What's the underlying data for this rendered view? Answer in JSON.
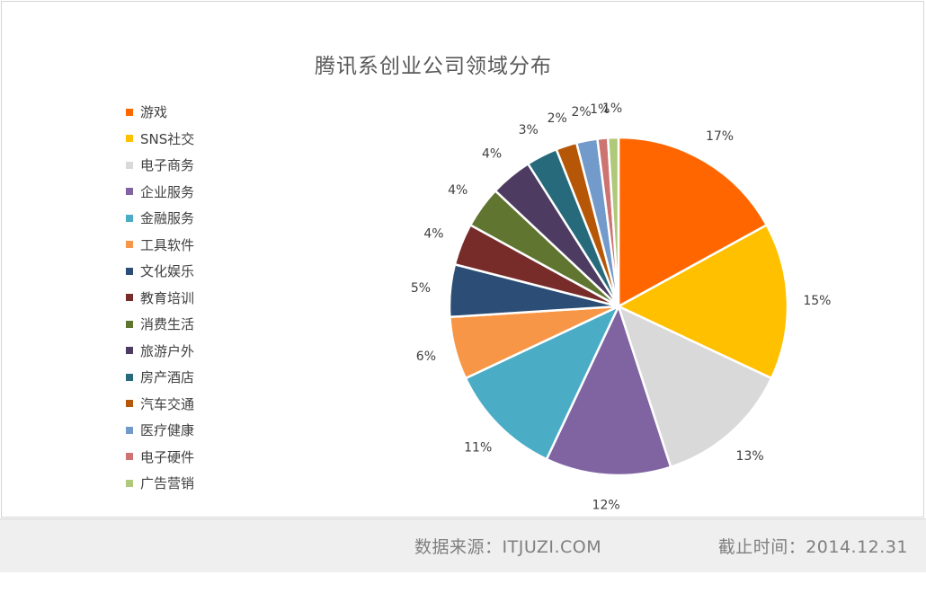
{
  "chart_data": {
    "type": "pie",
    "title": "腾讯系创业公司领域分布",
    "legend_position": "left",
    "slices": [
      {
        "label": "游戏",
        "value": 17,
        "display": "17%",
        "color": "#FF6600"
      },
      {
        "label": "SNS社交",
        "value": 15,
        "display": "15%",
        "color": "#FFC000"
      },
      {
        "label": "电子商务",
        "value": 13,
        "display": "13%",
        "color": "#D9D9D9"
      },
      {
        "label": "企业服务",
        "value": 12,
        "display": "12%",
        "color": "#8064A2"
      },
      {
        "label": "金融服务",
        "value": 11,
        "display": "11%",
        "color": "#4BACC6"
      },
      {
        "label": "工具软件",
        "value": 6,
        "display": "6%",
        "color": "#F79646"
      },
      {
        "label": "文化娱乐",
        "value": 5,
        "display": "5%",
        "color": "#2C4D75"
      },
      {
        "label": "教育培训",
        "value": 4,
        "display": "4%",
        "color": "#772C2A"
      },
      {
        "label": "消费生活",
        "value": 4,
        "display": "4%",
        "color": "#5F7530"
      },
      {
        "label": "旅游户外",
        "value": 4,
        "display": "4%",
        "color": "#4D3B62"
      },
      {
        "label": "房产酒店",
        "value": 3,
        "display": "3%",
        "color": "#276A7C"
      },
      {
        "label": "汽车交通",
        "value": 2,
        "display": "2%",
        "color": "#B65708"
      },
      {
        "label": "医疗健康",
        "value": 2,
        "display": "2%",
        "color": "#729ACA"
      },
      {
        "label": "电子硬件",
        "value": 1,
        "display": "1%",
        "color": "#CD7371"
      },
      {
        "label": "广告营销",
        "value": 1,
        "display": "1%",
        "color": "#AFC97A"
      }
    ]
  },
  "footer": {
    "source": "数据来源：ITJUZI.COM",
    "date": "截止时间：2014.12.31"
  }
}
